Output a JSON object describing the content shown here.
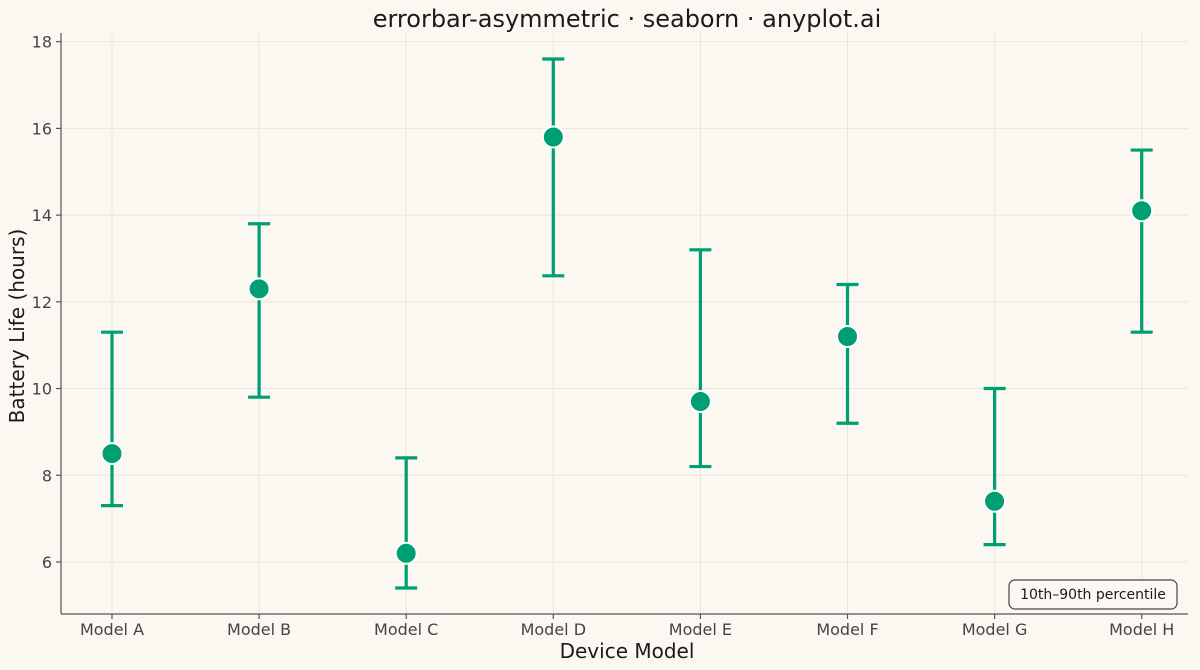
{
  "chart_data": {
    "type": "scatter",
    "title": "errorbar-asymmetric · seaborn · anyplot.ai",
    "xlabel": "Device Model",
    "ylabel": "Battery Life (hours)",
    "categories": [
      "Model A",
      "Model B",
      "Model C",
      "Model D",
      "Model E",
      "Model F",
      "Model G",
      "Model H"
    ],
    "values": [
      8.5,
      12.3,
      6.2,
      15.8,
      9.7,
      11.2,
      7.4,
      14.1
    ],
    "lower": [
      7.3,
      9.8,
      5.4,
      12.6,
      8.2,
      9.2,
      6.4,
      11.3
    ],
    "upper": [
      11.3,
      13.8,
      8.4,
      17.6,
      13.2,
      12.4,
      10.0,
      15.5
    ],
    "yticks": [
      6,
      8,
      10,
      12,
      14,
      16,
      18
    ],
    "ylim": [
      4.8,
      18.2
    ],
    "grid": true,
    "legend_text": "10th–90th percentile",
    "legend_position": "bottom-right",
    "colors": {
      "series": "#009E73",
      "background": "#FAF8F1",
      "grid": "#E9E6DE",
      "axis": "#555555"
    }
  }
}
